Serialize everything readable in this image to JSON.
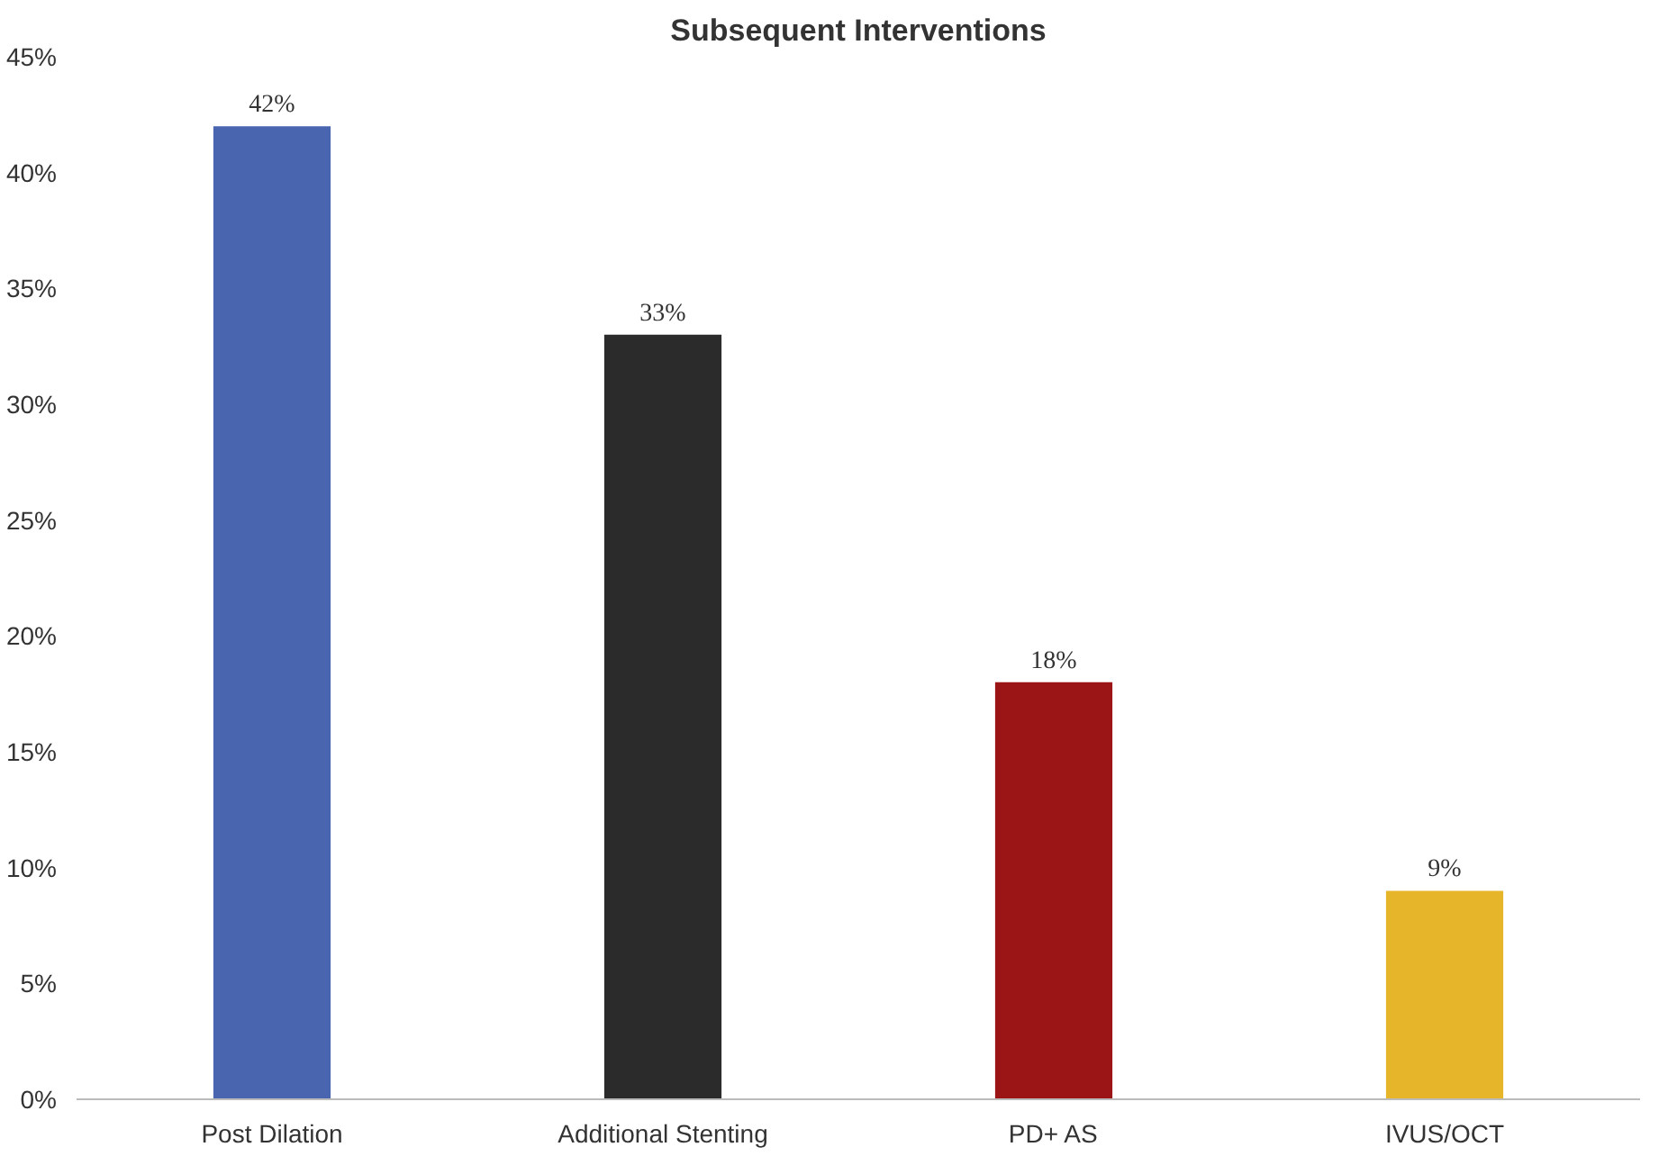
{
  "chart_data": {
    "type": "bar",
    "title": "Subsequent Interventions",
    "categories": [
      "Post Dilation",
      "Additional Stenting",
      "PD+ AS",
      "IVUS/OCT"
    ],
    "values": [
      42,
      33,
      18,
      9
    ],
    "colors": [
      "#4a65b0",
      "#2b2b2b",
      "#9b1416",
      "#e6b52a"
    ],
    "value_labels": [
      "42%",
      "33%",
      "18%",
      "9%"
    ],
    "ylim": [
      0,
      45
    ],
    "yticks": [
      {
        "value": 0,
        "label": "0%"
      },
      {
        "value": 5,
        "label": "5%"
      },
      {
        "value": 10,
        "label": "10%"
      },
      {
        "value": 15,
        "label": "15%"
      },
      {
        "value": 20,
        "label": "20%"
      },
      {
        "value": 25,
        "label": "25%"
      },
      {
        "value": 30,
        "label": "30%"
      },
      {
        "value": 35,
        "label": "35%"
      },
      {
        "value": 40,
        "label": "40%"
      },
      {
        "value": 45,
        "label": "45%"
      }
    ],
    "grid": false
  }
}
